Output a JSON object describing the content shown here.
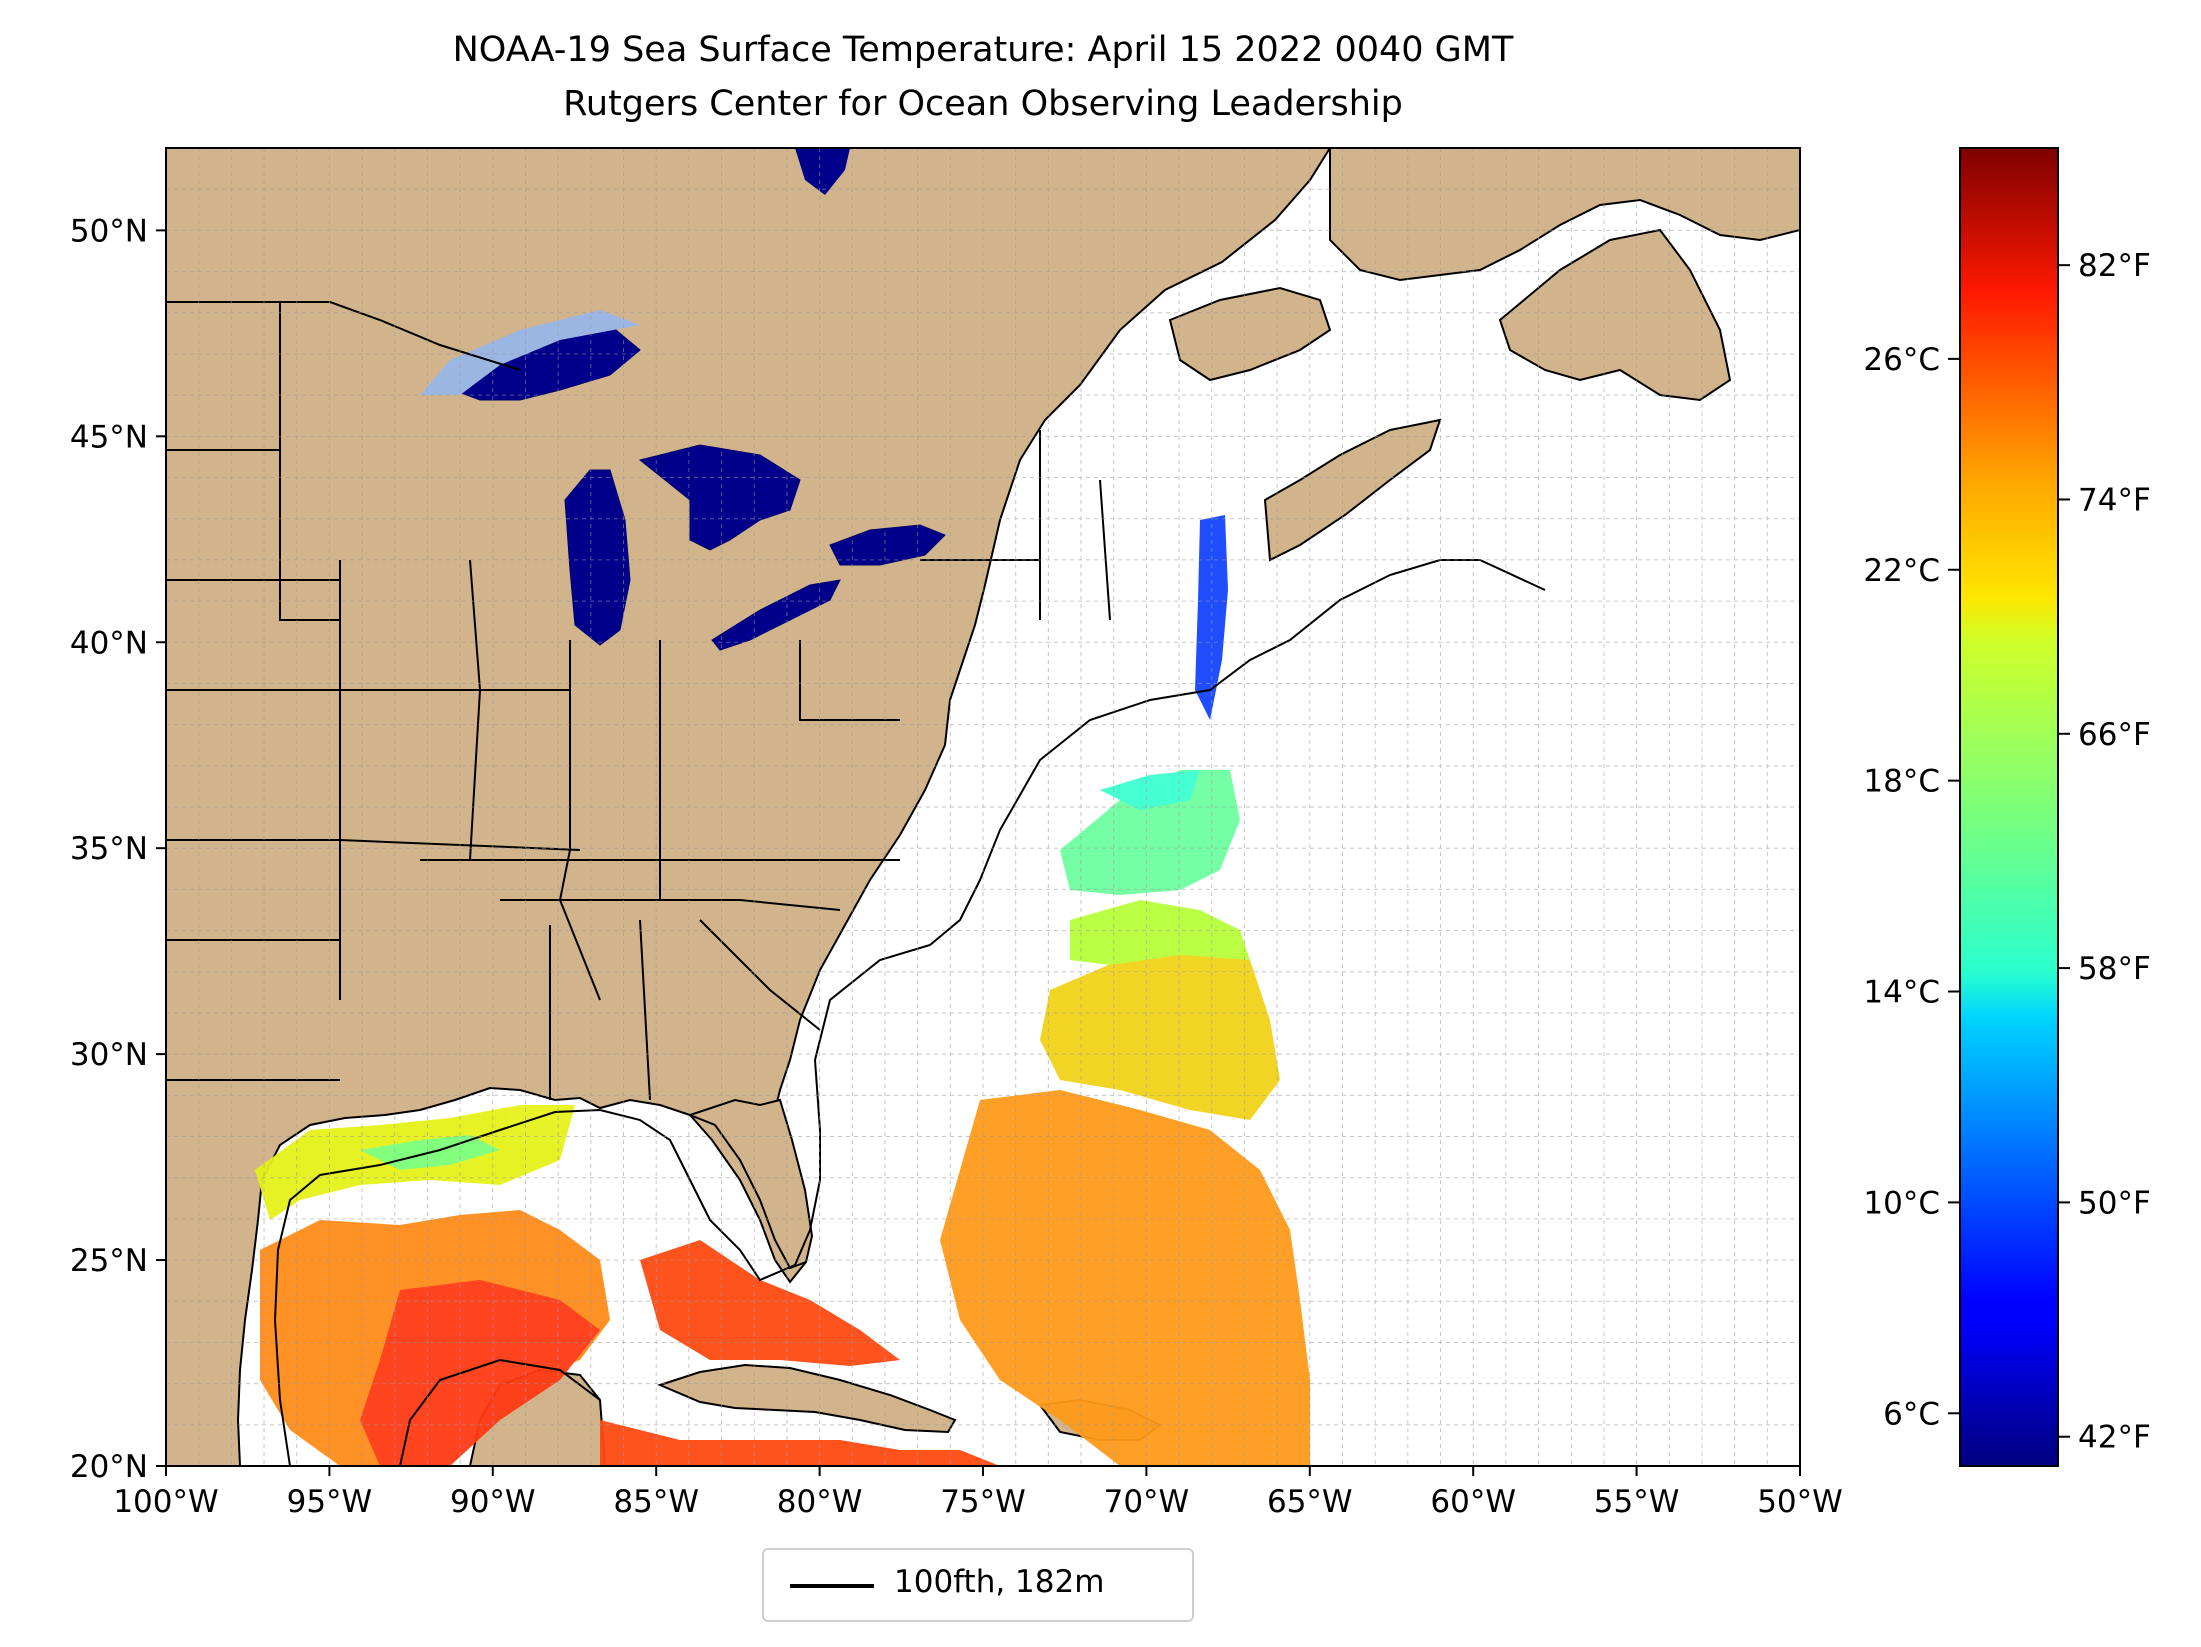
{
  "title": {
    "line1": "NOAA-19 Sea Surface Temperature: April 15 2022 0040 GMT",
    "line2": "Rutgers Center for Ocean Observing Leadership"
  },
  "map": {
    "extent": {
      "lon": [
        -100,
        -50
      ],
      "lat": [
        20,
        52
      ]
    },
    "lon_ticks": [
      {
        "value": -100,
        "label": "100°W"
      },
      {
        "value": -95,
        "label": "95°W"
      },
      {
        "value": -90,
        "label": "90°W"
      },
      {
        "value": -85,
        "label": "85°W"
      },
      {
        "value": -80,
        "label": "80°W"
      },
      {
        "value": -75,
        "label": "75°W"
      },
      {
        "value": -70,
        "label": "70°W"
      },
      {
        "value": -65,
        "label": "65°W"
      },
      {
        "value": -60,
        "label": "60°W"
      },
      {
        "value": -55,
        "label": "55°W"
      },
      {
        "value": -50,
        "label": "50°W"
      }
    ],
    "lat_ticks": [
      {
        "value": 50,
        "label": "50°N"
      },
      {
        "value": 45,
        "label": "45°N"
      },
      {
        "value": 40,
        "label": "40°N"
      },
      {
        "value": 35,
        "label": "35°N"
      },
      {
        "value": 30,
        "label": "30°N"
      },
      {
        "value": 25,
        "label": "25°N"
      },
      {
        "value": 20,
        "label": "20°N"
      }
    ],
    "gridlines": true,
    "colors": {
      "land": "#d2b48c",
      "lakes": "#9cb6e4",
      "ocean_nodata": "#ffffff",
      "border": "#000000"
    }
  },
  "colorbar": {
    "colormap": "jet",
    "range_celsius": [
      5,
      30
    ],
    "celsius_ticks": [
      {
        "value": 6,
        "label": "6°C"
      },
      {
        "value": 10,
        "label": "10°C"
      },
      {
        "value": 14,
        "label": "14°C"
      },
      {
        "value": 18,
        "label": "18°C"
      },
      {
        "value": 22,
        "label": "22°C"
      },
      {
        "value": 26,
        "label": "26°C"
      }
    ],
    "fahrenheit_ticks": [
      {
        "value": 42,
        "label": "42°F"
      },
      {
        "value": 50,
        "label": "50°F"
      },
      {
        "value": 58,
        "label": "58°F"
      },
      {
        "value": 66,
        "label": "66°F"
      },
      {
        "value": 74,
        "label": "74°F"
      },
      {
        "value": 82,
        "label": "82°F"
      }
    ]
  },
  "legend": {
    "label": "100fth, 182m",
    "line_color": "#000000"
  }
}
